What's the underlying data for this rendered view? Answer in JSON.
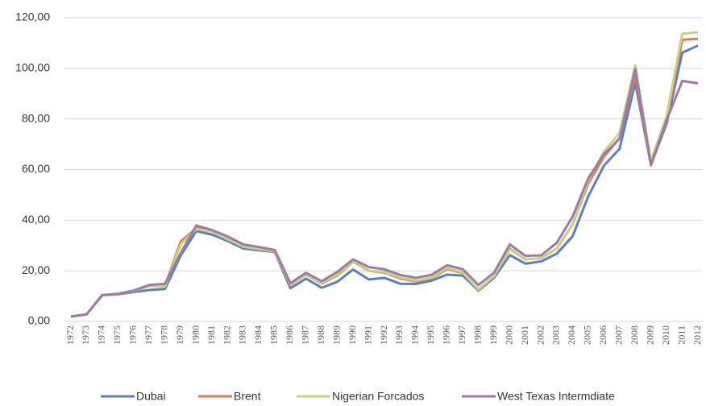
{
  "chart_data": {
    "type": "line",
    "categories": [
      "1972",
      "1973",
      "1974",
      "1975",
      "1976",
      "1977",
      "1978",
      "1979",
      "1980",
      "1981",
      "1982",
      "1983",
      "1984",
      "1985",
      "1986",
      "1987",
      "1988",
      "1989",
      "1990",
      "1991",
      "1992",
      "1993",
      "1994",
      "1995",
      "1996",
      "1997",
      "1998",
      "1999",
      "2000",
      "2001",
      "2002",
      "2003",
      "2004",
      "2005",
      "2006",
      "2007",
      "2008",
      "2009",
      "2010",
      "2011",
      "2012"
    ],
    "series": [
      {
        "name": "Dubai",
        "color": "#5b80c2",
        "values": [
          1.9,
          2.8,
          10.4,
          10.7,
          11.6,
          12.4,
          12.8,
          26.0,
          35.7,
          34.3,
          31.8,
          28.8,
          28.1,
          27.5,
          13.1,
          16.9,
          13.3,
          15.7,
          20.5,
          16.6,
          17.2,
          14.9,
          14.8,
          16.1,
          18.5,
          18.1,
          12.2,
          17.3,
          26.2,
          22.8,
          23.7,
          26.8,
          33.6,
          49.4,
          61.5,
          68.2,
          94.3,
          61.9,
          78.1,
          106.2,
          109.0
        ]
      },
      {
        "name": "Brent",
        "color": "#e8774c",
        "values": [
          1.9,
          2.8,
          10.4,
          10.8,
          12.0,
          14.2,
          14.0,
          31.6,
          36.8,
          35.9,
          33.0,
          29.6,
          28.8,
          27.6,
          14.4,
          18.4,
          15.0,
          18.2,
          23.7,
          20.0,
          19.3,
          17.0,
          15.8,
          17.0,
          20.7,
          19.1,
          12.7,
          17.9,
          28.7,
          24.5,
          25.0,
          28.8,
          38.3,
          54.5,
          65.1,
          72.4,
          97.3,
          61.7,
          79.5,
          111.3,
          111.7
        ]
      },
      {
        "name": "Nigerian Forcados",
        "color": "#c9d27e",
        "values": [
          1.9,
          2.8,
          10.4,
          10.9,
          12.1,
          14.0,
          13.8,
          30.5,
          36.5,
          35.5,
          32.5,
          29.5,
          28.6,
          27.8,
          14.6,
          18.4,
          15.2,
          18.6,
          23.9,
          20.1,
          19.6,
          17.4,
          16.1,
          17.3,
          21.2,
          19.3,
          12.6,
          18.0,
          28.5,
          24.4,
          25.1,
          28.8,
          38.3,
          55.6,
          67.1,
          74.5,
          101.2,
          63.4,
          81.1,
          113.7,
          114.2
        ]
      },
      {
        "name": "West Texas Intermdiate",
        "color": "#9c7ba6",
        "values": [
          1.9,
          2.8,
          10.4,
          10.9,
          12.2,
          14.4,
          14.9,
          27.0,
          37.9,
          36.1,
          33.6,
          30.4,
          29.4,
          28.2,
          15.1,
          19.2,
          15.9,
          19.6,
          24.5,
          21.5,
          20.6,
          18.4,
          17.2,
          18.4,
          22.2,
          20.6,
          14.4,
          19.3,
          30.4,
          25.9,
          26.1,
          31.1,
          41.4,
          56.5,
          66.0,
          72.2,
          99.7,
          61.9,
          79.5,
          95.0,
          94.1
        ]
      }
    ],
    "ylim": [
      0,
      120
    ],
    "yticks": [
      {
        "value": 0,
        "label": "0,00"
      },
      {
        "value": 20,
        "label": "20,00"
      },
      {
        "value": 40,
        "label": "40,00"
      },
      {
        "value": 60,
        "label": "60,00"
      },
      {
        "value": 80,
        "label": "80,00"
      },
      {
        "value": 100,
        "label": "100,00"
      },
      {
        "value": 120,
        "label": "120,00"
      }
    ],
    "grid": true
  }
}
